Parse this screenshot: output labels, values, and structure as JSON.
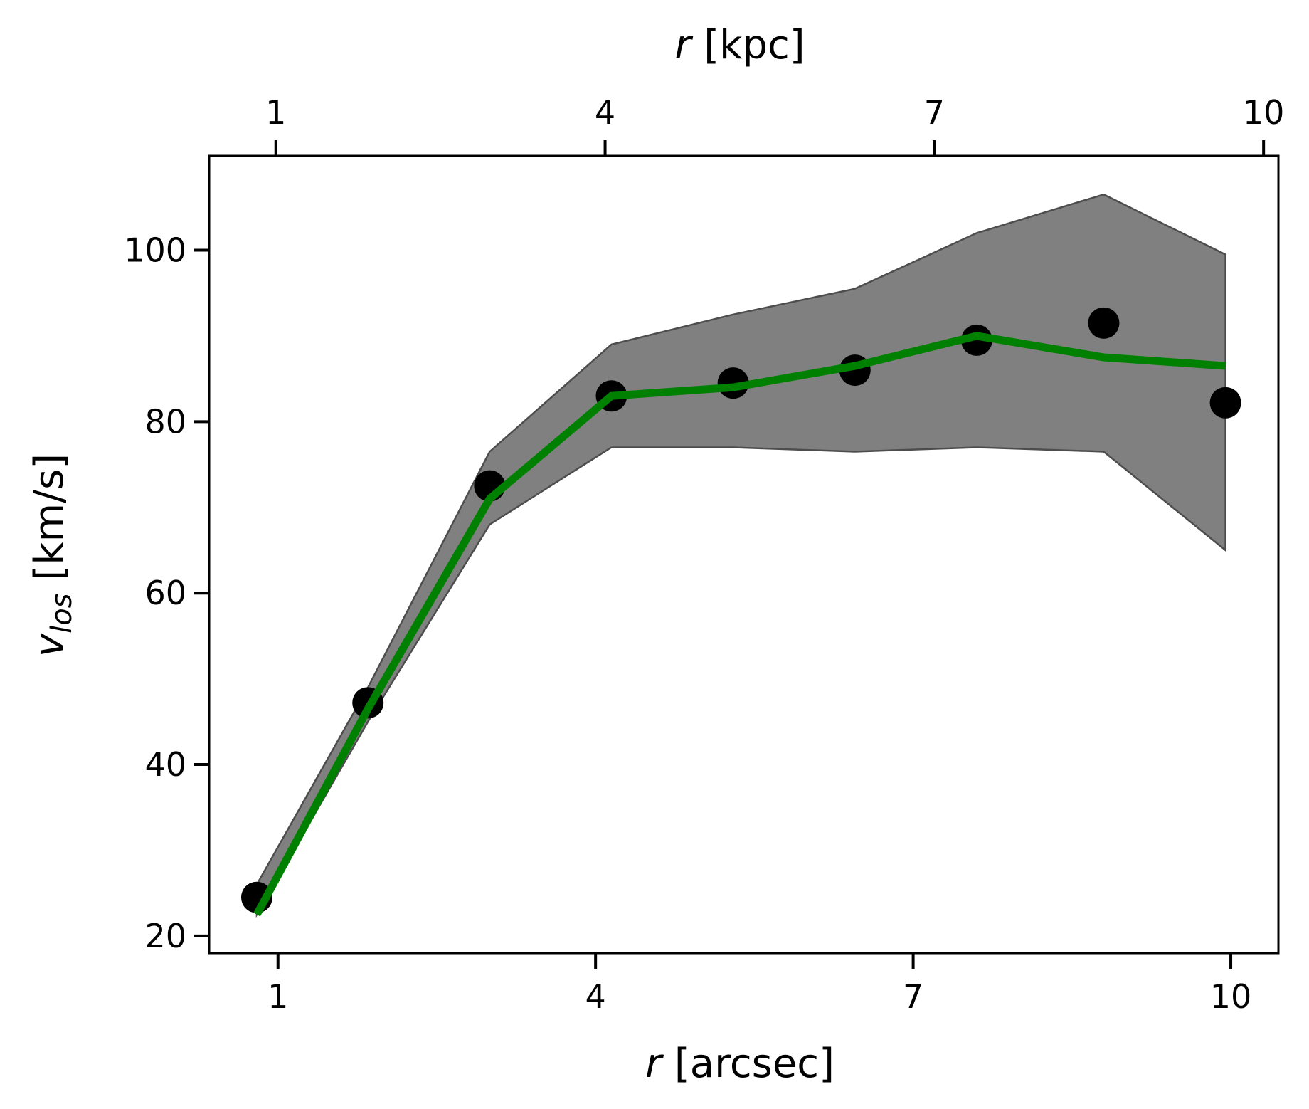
{
  "chart_data": {
    "type": "line",
    "xlabel": {
      "var": "r",
      "unit": "[arcsec]"
    },
    "x2label": {
      "var": "r",
      "unit": "[kpc]"
    },
    "ylabel": {
      "var": "v",
      "sub": "los",
      "unit": "[km/s]"
    },
    "xlim": [
      0.35,
      10.45
    ],
    "ylim": [
      18,
      111
    ],
    "x2lim": [
      0.35,
      10.45
    ],
    "xticks": [
      1,
      4,
      7,
      10
    ],
    "xtick_labels": [
      "1",
      "4",
      "7",
      "10"
    ],
    "x2ticks": [
      0.98,
      4.09,
      7.2,
      10.31
    ],
    "x2tick_labels": [
      "1",
      "4",
      "7",
      "10"
    ],
    "yticks": [
      20,
      40,
      60,
      80,
      100
    ],
    "ytick_labels": [
      "20",
      "40",
      "60",
      "80",
      "100"
    ],
    "grid": false,
    "series": [
      {
        "kind": "band",
        "color": "#808080",
        "x": [
          0.8,
          1.85,
          3.0,
          4.15,
          5.3,
          6.45,
          7.6,
          8.8,
          9.95
        ],
        "upper": [
          26,
          49,
          76.5,
          89,
          92.5,
          95.5,
          102,
          106.5,
          99.5
        ],
        "lower": [
          22.5,
          45,
          68,
          77,
          77,
          76.5,
          77,
          76.5,
          65
        ]
      },
      {
        "kind": "points",
        "color": "#000000",
        "x": [
          0.8,
          1.85,
          3.0,
          4.15,
          5.3,
          6.45,
          7.6,
          8.8,
          9.95
        ],
        "y": [
          24.5,
          47.2,
          72.5,
          83,
          84.5,
          86,
          89.5,
          91.5,
          82.2
        ]
      },
      {
        "kind": "line",
        "color": "#008000",
        "x": [
          0.8,
          1.85,
          3.0,
          4.15,
          5.3,
          6.45,
          7.6,
          8.8,
          9.95
        ],
        "y": [
          22.5,
          46.5,
          71,
          83,
          84,
          86.5,
          90,
          87.5,
          86.5
        ]
      }
    ]
  }
}
